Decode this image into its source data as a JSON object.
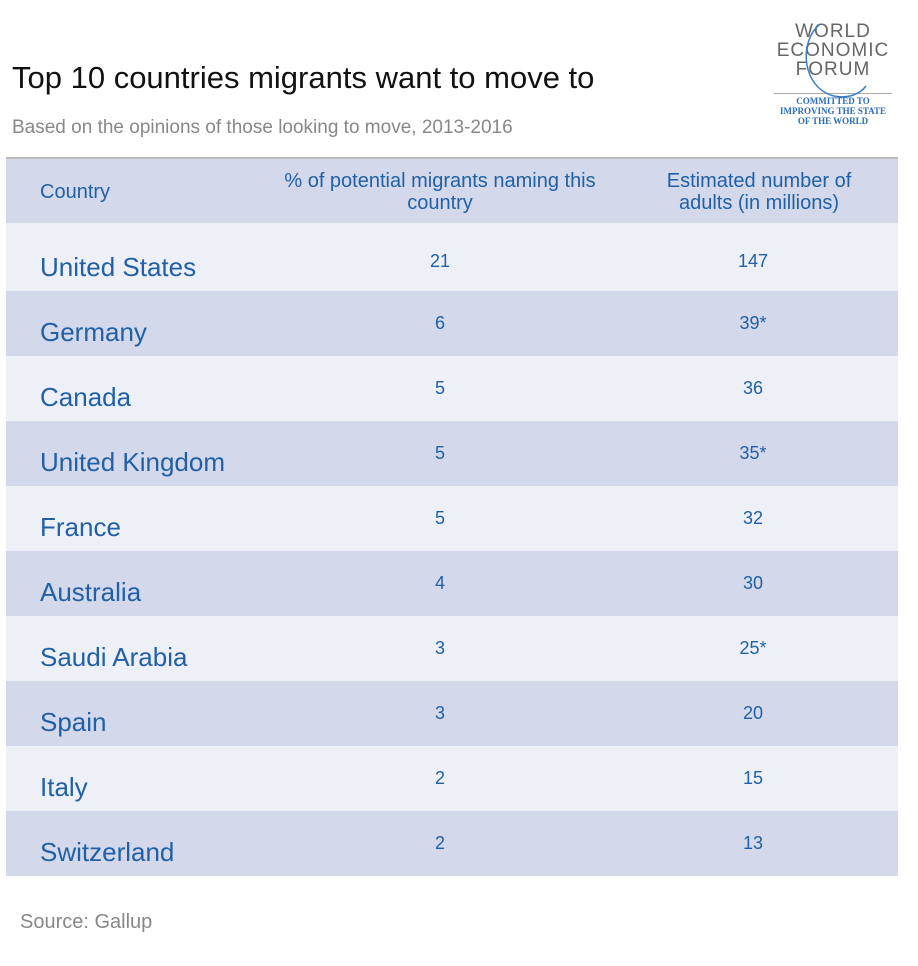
{
  "title": "Top 10 countries migrants want to move to",
  "subtitle": "Based on the opinions of those looking to move, 2013-2016",
  "logo": {
    "lines": [
      "WORLD",
      "ECONOMIC",
      "FORUM"
    ],
    "tagline": [
      "COMMITTED TO",
      "IMPROVING THE STATE",
      "OF THE WORLD"
    ]
  },
  "table": {
    "headers": [
      "Country",
      "% of potential migrants naming this country",
      "Estimated number of adults (in millions)"
    ],
    "rows": [
      {
        "country": "United States",
        "percent": "21",
        "adults": "147"
      },
      {
        "country": "Germany",
        "percent": "6",
        "adults": "39*"
      },
      {
        "country": "Canada",
        "percent": "5",
        "adults": "36"
      },
      {
        "country": "United Kingdom",
        "percent": "5",
        "adults": "35*"
      },
      {
        "country": "France",
        "percent": "5",
        "adults": "32"
      },
      {
        "country": "Australia",
        "percent": "4",
        "adults": "30"
      },
      {
        "country": "Saudi Arabia",
        "percent": "3",
        "adults": "25*"
      },
      {
        "country": "Spain",
        "percent": "3",
        "adults": "20"
      },
      {
        "country": "Italy",
        "percent": "2",
        "adults": "15"
      },
      {
        "country": "Switzerland",
        "percent": "2",
        "adults": "13"
      }
    ]
  },
  "source": "Source: Gallup"
}
